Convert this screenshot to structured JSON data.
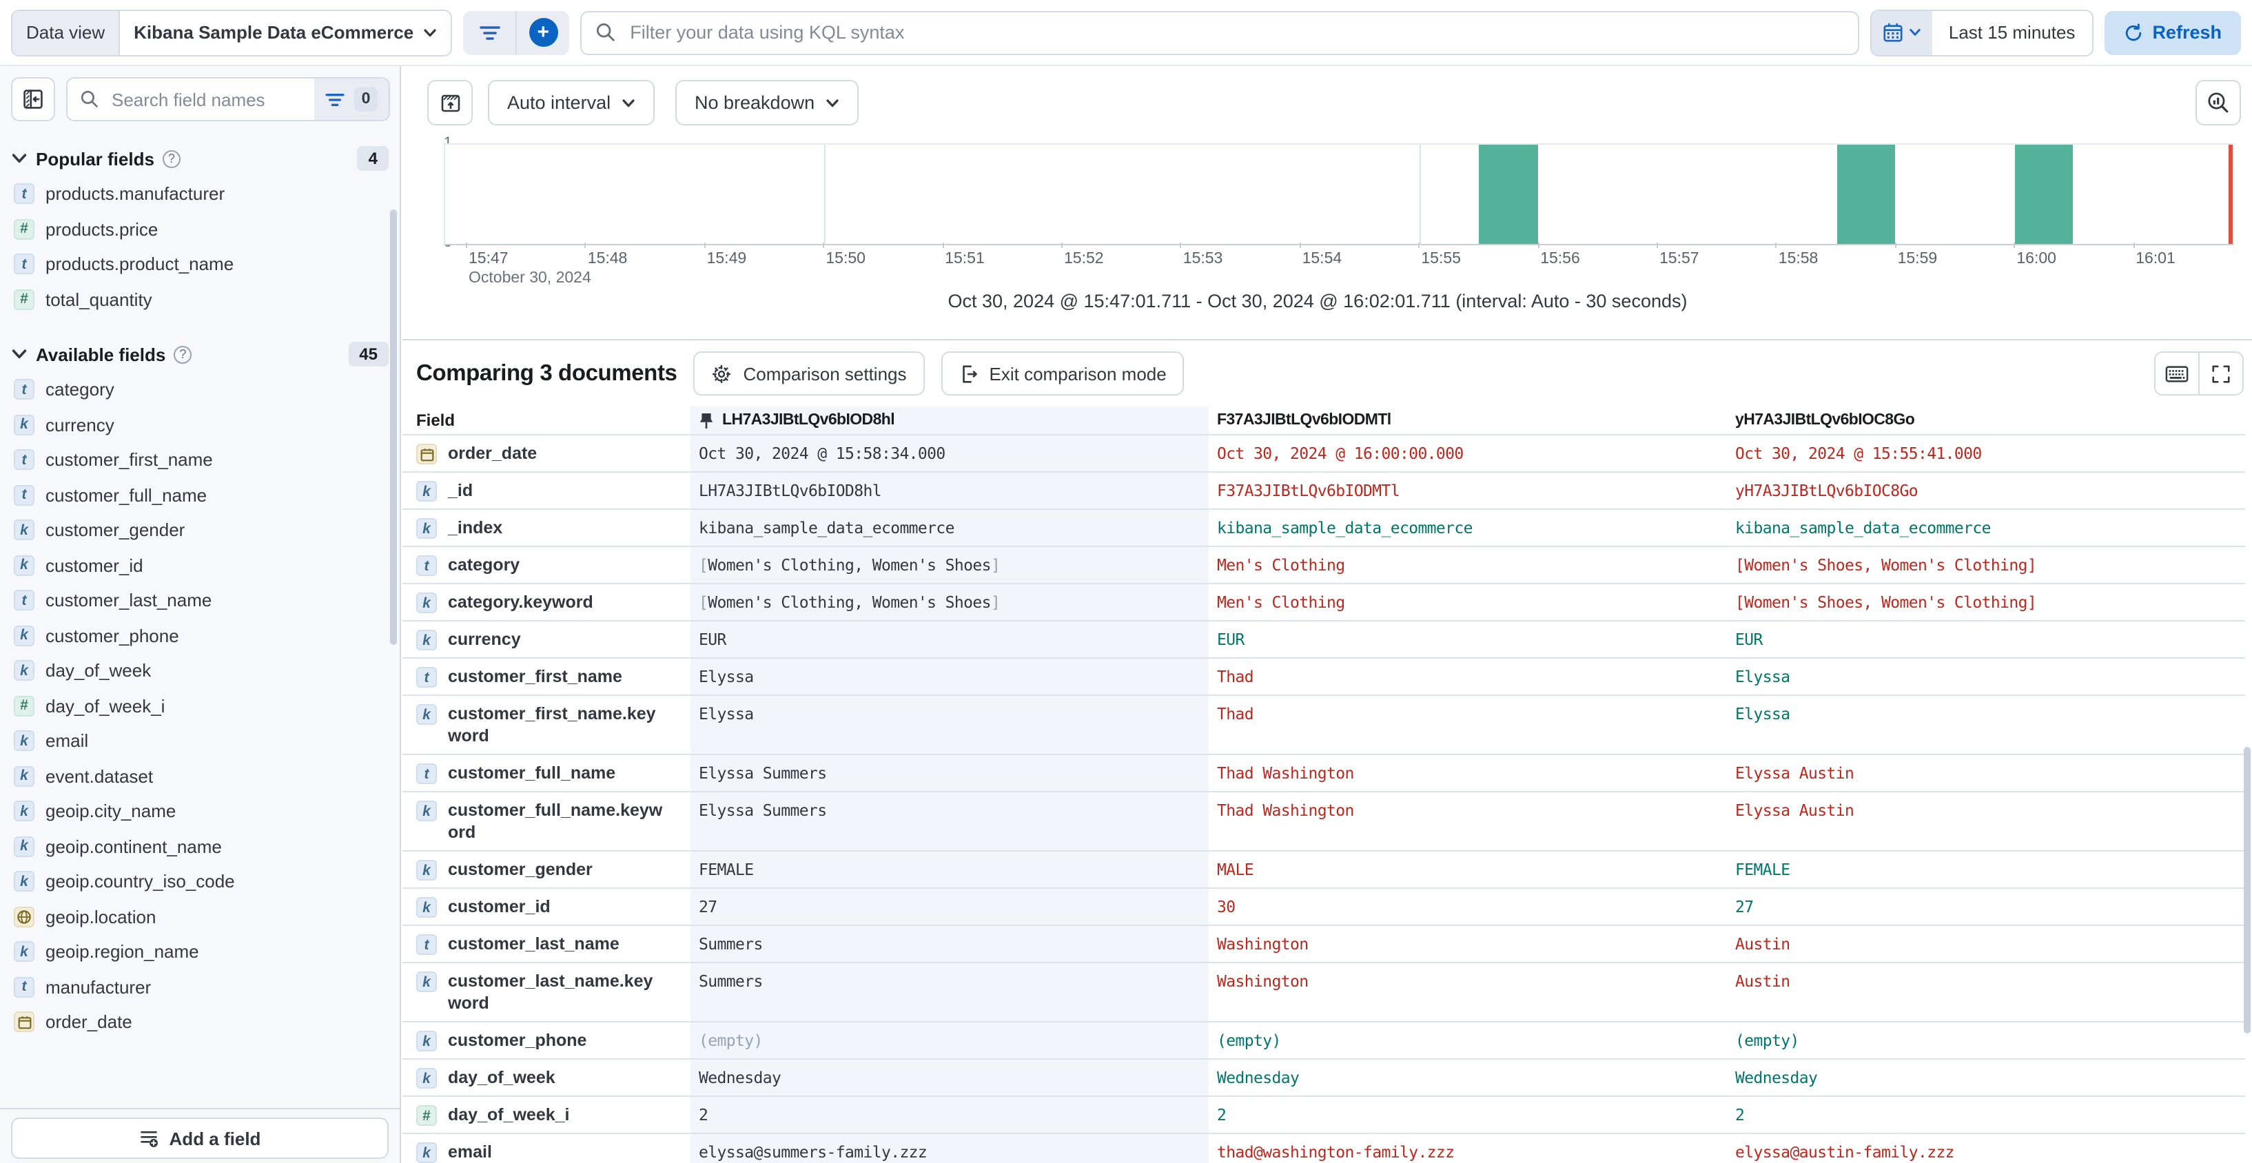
{
  "top_bar": {
    "data_view_label": "Data view",
    "data_view_value": "Kibana Sample Data eCommerce",
    "kql_placeholder": "Filter your data using KQL syntax",
    "time_range": "Last 15 minutes",
    "refresh_label": "Refresh"
  },
  "sidebar": {
    "search_placeholder": "Search field names",
    "filter_badge": "0",
    "popular": {
      "title": "Popular fields",
      "count": "4",
      "items": [
        {
          "icon": "t",
          "name": "products.manufacturer"
        },
        {
          "icon": "n",
          "name": "products.price"
        },
        {
          "icon": "t",
          "name": "products.product_name"
        },
        {
          "icon": "n",
          "name": "total_quantity"
        }
      ]
    },
    "available": {
      "title": "Available fields",
      "count": "45",
      "items": [
        {
          "icon": "t",
          "name": "category"
        },
        {
          "icon": "k",
          "name": "currency"
        },
        {
          "icon": "t",
          "name": "customer_first_name"
        },
        {
          "icon": "t",
          "name": "customer_full_name"
        },
        {
          "icon": "k",
          "name": "customer_gender"
        },
        {
          "icon": "k",
          "name": "customer_id"
        },
        {
          "icon": "t",
          "name": "customer_last_name"
        },
        {
          "icon": "k",
          "name": "customer_phone"
        },
        {
          "icon": "k",
          "name": "day_of_week"
        },
        {
          "icon": "n",
          "name": "day_of_week_i"
        },
        {
          "icon": "k",
          "name": "email"
        },
        {
          "icon": "k",
          "name": "event.dataset"
        },
        {
          "icon": "k",
          "name": "geoip.city_name"
        },
        {
          "icon": "k",
          "name": "geoip.continent_name"
        },
        {
          "icon": "k",
          "name": "geoip.country_iso_code"
        },
        {
          "icon": "geo",
          "name": "geoip.location"
        },
        {
          "icon": "k",
          "name": "geoip.region_name"
        },
        {
          "icon": "t",
          "name": "manufacturer"
        },
        {
          "icon": "date",
          "name": "order_date"
        }
      ]
    },
    "add_field_label": "Add a field"
  },
  "chart": {
    "interval_label": "Auto interval",
    "breakdown_label": "No breakdown",
    "y_max": "1",
    "y_min": "0",
    "x_ticks": [
      "15:47",
      "15:48",
      "15:49",
      "15:50",
      "15:51",
      "15:52",
      "15:53",
      "15:54",
      "15:55",
      "15:56",
      "15:57",
      "15:58",
      "15:59",
      "16:00",
      "16:01"
    ],
    "x_date_label": "October 30, 2024",
    "caption": "Oct 30, 2024 @ 15:47:01.711 - Oct 30, 2024 @ 16:02:01.711 (interval: Auto - 30 seconds)",
    "chart_data": {
      "type": "bar",
      "x": [
        "15:55:30",
        "15:58:30",
        "16:00:00"
      ],
      "values": [
        1,
        1,
        1
      ],
      "interval_seconds": 30,
      "ylim": [
        0,
        1
      ],
      "bar_color": "#54b399",
      "gridline_ticks": [
        "15:50",
        "15:55",
        "16:00"
      ]
    }
  },
  "comparison": {
    "title": "Comparing 3 documents",
    "settings_label": "Comparison settings",
    "exit_label": "Exit comparison mode"
  },
  "table": {
    "field_header": "Field",
    "docs": [
      "LH7A3JIBtLQv6bIOD8hl",
      "F37A3JIBtLQv6bIODMTl",
      "yH7A3JIBtLQv6bIOC8Go"
    ],
    "pinned_doc_index": 0,
    "rows": [
      {
        "icon": "date",
        "field": "order_date",
        "cells": [
          {
            "t": "Oct 30, 2024 @ 15:58:34.000",
            "tone": "base"
          },
          {
            "t": "Oct 30, 2024 @ 16:00:00.000",
            "tone": "diff"
          },
          {
            "t": "Oct 30, 2024 @ 15:55:41.000",
            "tone": "diff"
          }
        ]
      },
      {
        "icon": "k",
        "field": "_id",
        "cells": [
          {
            "t": "LH7A3JIBtLQv6bIOD8hl",
            "tone": "base"
          },
          {
            "t": "F37A3JIBtLQv6bIODMTl",
            "tone": "diff"
          },
          {
            "t": "yH7A3JIBtLQv6bIOC8Go",
            "tone": "diff"
          }
        ]
      },
      {
        "icon": "k",
        "field": "_index",
        "cells": [
          {
            "t": "kibana_sample_data_ecommerce",
            "tone": "base"
          },
          {
            "t": "kibana_sample_data_ecommerce",
            "tone": "same"
          },
          {
            "t": "kibana_sample_data_ecommerce",
            "tone": "same"
          }
        ]
      },
      {
        "icon": "t",
        "field": "category",
        "cells": [
          {
            "t": "[Women's Clothing, Women's Shoes]",
            "tone": "base"
          },
          {
            "t": "Men's Clothing",
            "tone": "diff"
          },
          {
            "t": "[Women's Shoes, Women's Clothing]",
            "tone": "diff"
          }
        ]
      },
      {
        "icon": "k",
        "field": "category.keyword",
        "cells": [
          {
            "t": "[Women's Clothing, Women's Shoes]",
            "tone": "base"
          },
          {
            "t": "Men's Clothing",
            "tone": "diff"
          },
          {
            "t": "[Women's Shoes, Women's Clothing]",
            "tone": "diff"
          }
        ]
      },
      {
        "icon": "k",
        "field": "currency",
        "cells": [
          {
            "t": "EUR",
            "tone": "base"
          },
          {
            "t": "EUR",
            "tone": "same"
          },
          {
            "t": "EUR",
            "tone": "same"
          }
        ]
      },
      {
        "icon": "t",
        "field": "customer_first_name",
        "cells": [
          {
            "t": "Elyssa",
            "tone": "base"
          },
          {
            "t": "Thad",
            "tone": "diff"
          },
          {
            "t": "Elyssa",
            "tone": "same"
          }
        ]
      },
      {
        "icon": "k",
        "field": "customer_first_name.keyword",
        "cells": [
          {
            "t": "Elyssa",
            "tone": "base"
          },
          {
            "t": "Thad",
            "tone": "diff"
          },
          {
            "t": "Elyssa",
            "tone": "same"
          }
        ]
      },
      {
        "icon": "t",
        "field": "customer_full_name",
        "cells": [
          {
            "t": "Elyssa Summers",
            "tone": "base"
          },
          {
            "t": "Thad Washington",
            "tone": "diff"
          },
          {
            "t": "Elyssa Austin",
            "tone": "diff"
          }
        ]
      },
      {
        "icon": "k",
        "field": "customer_full_name.keyword",
        "cells": [
          {
            "t": "Elyssa Summers",
            "tone": "base"
          },
          {
            "t": "Thad Washington",
            "tone": "diff"
          },
          {
            "t": "Elyssa Austin",
            "tone": "diff"
          }
        ]
      },
      {
        "icon": "k",
        "field": "customer_gender",
        "cells": [
          {
            "t": "FEMALE",
            "tone": "base"
          },
          {
            "t": "MALE",
            "tone": "diff"
          },
          {
            "t": "FEMALE",
            "tone": "same"
          }
        ]
      },
      {
        "icon": "k",
        "field": "customer_id",
        "cells": [
          {
            "t": "27",
            "tone": "base"
          },
          {
            "t": "30",
            "tone": "diff"
          },
          {
            "t": "27",
            "tone": "same"
          }
        ]
      },
      {
        "icon": "t",
        "field": "customer_last_name",
        "cells": [
          {
            "t": "Summers",
            "tone": "base"
          },
          {
            "t": "Washington",
            "tone": "diff"
          },
          {
            "t": "Austin",
            "tone": "diff"
          }
        ]
      },
      {
        "icon": "k",
        "field": "customer_last_name.keyword",
        "cells": [
          {
            "t": "Summers",
            "tone": "base"
          },
          {
            "t": "Washington",
            "tone": "diff"
          },
          {
            "t": "Austin",
            "tone": "diff"
          }
        ]
      },
      {
        "icon": "k",
        "field": "customer_phone",
        "cells": [
          {
            "t": "(empty)",
            "tone": "muted"
          },
          {
            "t": "(empty)",
            "tone": "same"
          },
          {
            "t": "(empty)",
            "tone": "same"
          }
        ]
      },
      {
        "icon": "k",
        "field": "day_of_week",
        "cells": [
          {
            "t": "Wednesday",
            "tone": "base"
          },
          {
            "t": "Wednesday",
            "tone": "same"
          },
          {
            "t": "Wednesday",
            "tone": "same"
          }
        ]
      },
      {
        "icon": "n",
        "field": "day_of_week_i",
        "cells": [
          {
            "t": "2",
            "tone": "base"
          },
          {
            "t": "2",
            "tone": "same"
          },
          {
            "t": "2",
            "tone": "same"
          }
        ]
      },
      {
        "icon": "k",
        "field": "email",
        "cells": [
          {
            "t": "elyssa@summers-family.zzz",
            "tone": "base"
          },
          {
            "t": "thad@washington-family.zzz",
            "tone": "diff"
          },
          {
            "t": "elyssa@austin-family.zzz",
            "tone": "diff"
          }
        ]
      },
      {
        "icon": "k",
        "field": "",
        "partial": true,
        "cells": [
          {
            "t": "",
            "tone": "base"
          },
          {
            "t": "",
            "tone": "base"
          },
          {
            "t": "",
            "tone": "base"
          }
        ]
      }
    ]
  }
}
